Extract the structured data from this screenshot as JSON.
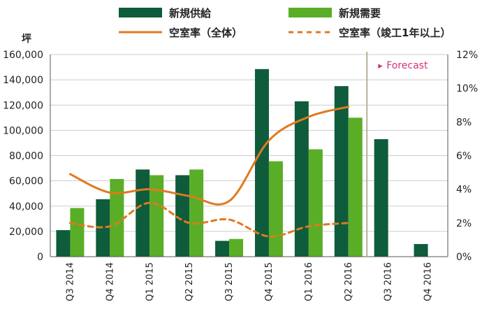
{
  "chart_data": {
    "type": "bar",
    "categories": [
      "Q3 2014",
      "Q4 2014",
      "Q1 2015",
      "Q2 2015",
      "Q3 2015",
      "Q4 2015",
      "Q1 2016",
      "Q2 2016",
      "Q3 2016",
      "Q4 2016"
    ],
    "y_left": {
      "unit_label": "坪",
      "ylim": [
        0,
        160000
      ],
      "ticks": [
        "0",
        "20,000",
        "40,000",
        "60,000",
        "80,000",
        "100,000",
        "120,000",
        "140,000",
        "160,000"
      ]
    },
    "y_right": {
      "ylim": [
        0,
        12
      ],
      "ticks": [
        "0%",
        "2%",
        "4%",
        "6%",
        "8%",
        "10%",
        "12%"
      ]
    },
    "series": [
      {
        "name": "新規供給",
        "kind": "bar",
        "color": "#0e5c3b",
        "values": [
          21000,
          45500,
          69000,
          64500,
          12500,
          148500,
          123000,
          135000,
          93000,
          10000
        ]
      },
      {
        "name": "新規需要",
        "kind": "bar",
        "color": "#5aae27",
        "values": [
          38500,
          61500,
          64500,
          69000,
          14000,
          75500,
          85000,
          110000,
          null,
          null
        ]
      },
      {
        "name": "空室率（全体）",
        "kind": "line",
        "axis": "right",
        "color": "#e07a1f",
        "style": "solid",
        "values": [
          4.9,
          3.8,
          4.0,
          3.6,
          3.3,
          6.9,
          8.3,
          8.9,
          null,
          null
        ]
      },
      {
        "name": "空室率（竣工1年以上）",
        "kind": "line",
        "axis": "right",
        "color": "#e07a1f",
        "style": "dashed",
        "values": [
          2.0,
          1.8,
          3.2,
          2.0,
          2.2,
          1.2,
          1.8,
          2.0,
          null,
          null
        ]
      }
    ],
    "annotations": [
      {
        "text": "Forecast",
        "marker": "▸",
        "color": "#d6337a"
      }
    ],
    "grid": "horizontal",
    "legend_position": "top"
  }
}
